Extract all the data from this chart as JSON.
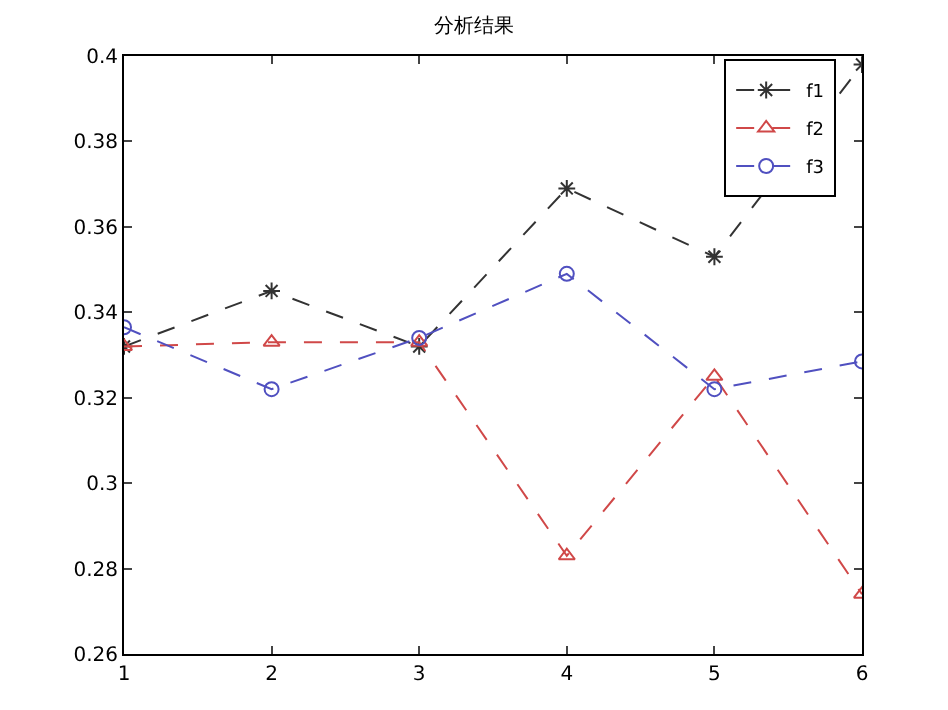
{
  "chart_data": {
    "type": "line",
    "title": "分析结果",
    "x": [
      1,
      2,
      3,
      4,
      5,
      6
    ],
    "series": [
      {
        "name": "f1",
        "color": "#333333",
        "marker": "cross",
        "values": [
          0.332,
          0.345,
          0.332,
          0.369,
          0.353,
          0.398
        ]
      },
      {
        "name": "f2",
        "color": "#d04848",
        "marker": "triangle",
        "values": [
          0.332,
          0.333,
          0.333,
          0.283,
          0.325,
          0.274
        ]
      },
      {
        "name": "f3",
        "color": "#5050c0",
        "marker": "circle",
        "values": [
          0.3365,
          0.322,
          0.334,
          0.349,
          0.322,
          0.3285
        ]
      }
    ],
    "xlim": [
      1,
      6
    ],
    "xticks": [
      1,
      2,
      3,
      4,
      5,
      6
    ],
    "ylim": [
      0.26,
      0.4
    ],
    "yticks": [
      0.26,
      0.28,
      0.3,
      0.32,
      0.34,
      0.36,
      0.38,
      0.4
    ],
    "line_style": "dashed",
    "legend": "top right"
  }
}
